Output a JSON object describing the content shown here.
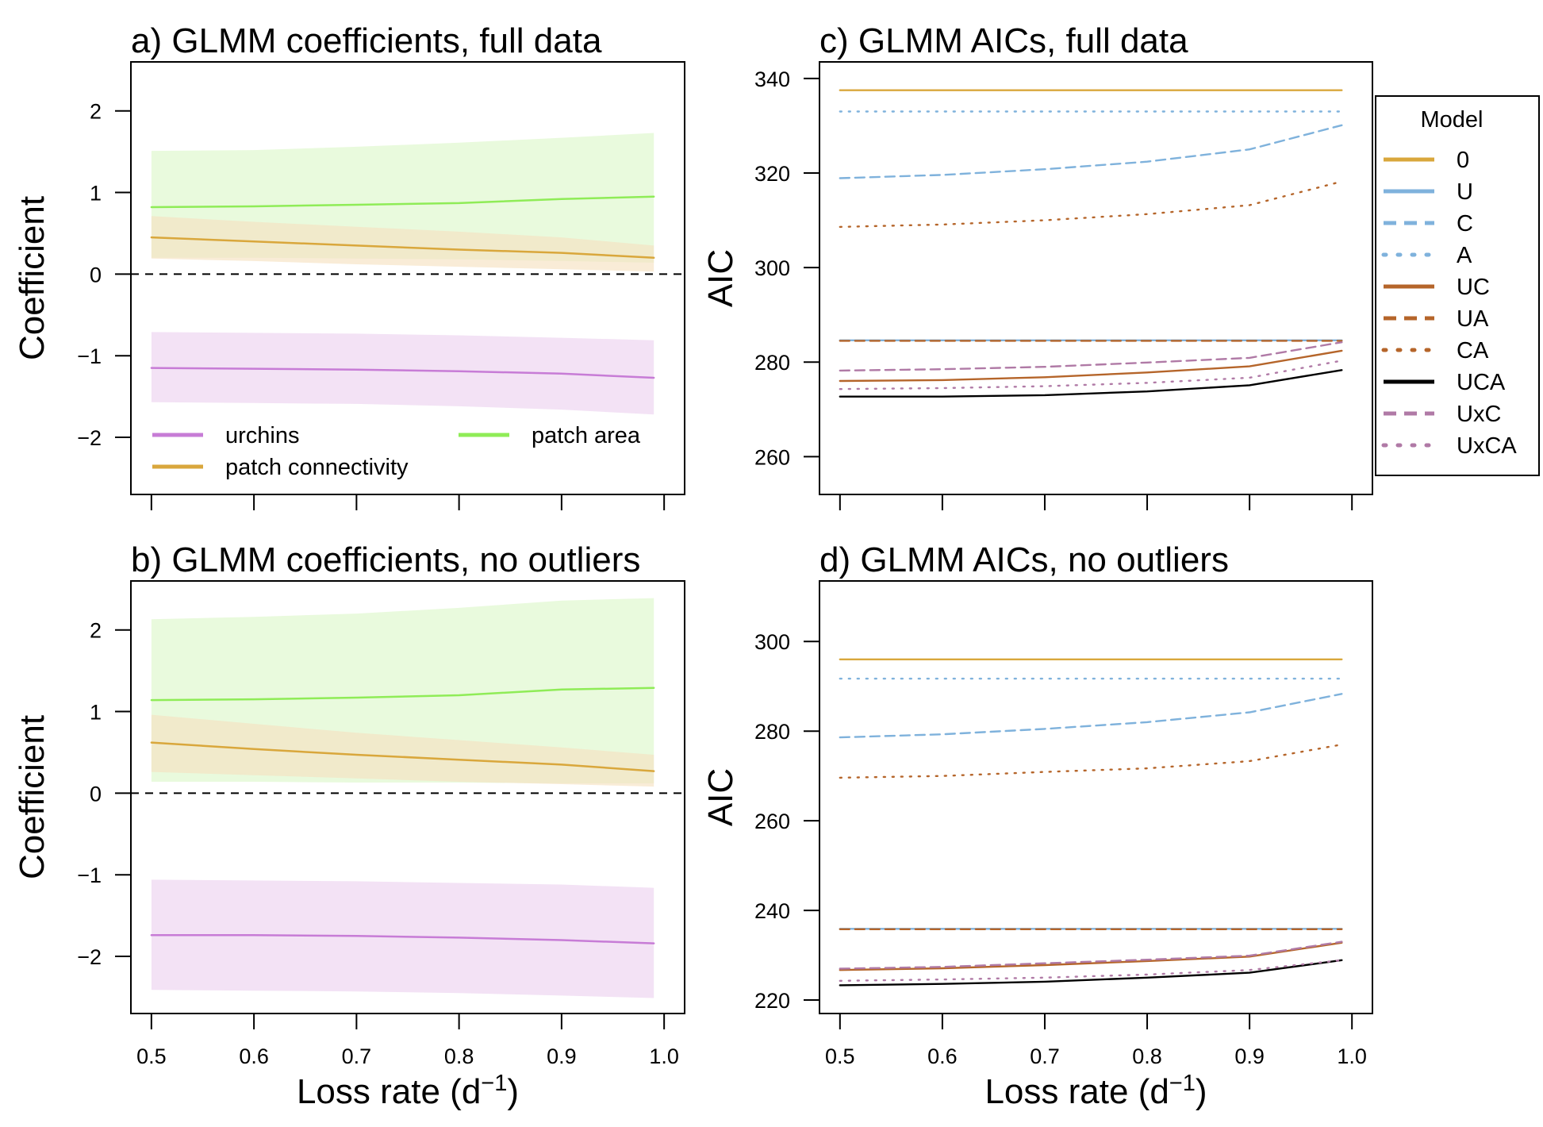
{
  "figure": {
    "panels": [
      {
        "id": "a",
        "title": "a) GLMM coefficients, full data",
        "ylabel": "Coefficient",
        "xlabel_base": "Loss rate (d",
        "xlabel_sup": "−1",
        "xlabel_close": ")",
        "show_xlabel": false,
        "show_x_tick_labels": false,
        "x_ticks": [
          "0.5",
          "0.6",
          "0.7",
          "0.8",
          "0.9",
          "1.0"
        ],
        "y_ticks": [
          "−2",
          "−1",
          "0",
          "1",
          "2"
        ],
        "legend": [
          {
            "label": "urchins",
            "color": "#c77cd6"
          },
          {
            "label": "patch connectivity",
            "color": "#d9a73c"
          },
          {
            "label": "patch area",
            "color": "#8fec57"
          }
        ]
      },
      {
        "id": "b",
        "title": "b) GLMM coefficients, no outliers",
        "ylabel": "Coefficient",
        "xlabel_base": "Loss rate (d",
        "xlabel_sup": "−1",
        "xlabel_close": ")",
        "show_xlabel": true,
        "show_x_tick_labels": true,
        "x_ticks": [
          "0.5",
          "0.6",
          "0.7",
          "0.8",
          "0.9",
          "1.0"
        ],
        "y_ticks": [
          "−2",
          "−1",
          "0",
          "1",
          "2"
        ]
      },
      {
        "id": "c",
        "title": "c) GLMM AICs, full data",
        "ylabel": "AIC",
        "xlabel_base": "Loss rate (d",
        "xlabel_sup": "−1",
        "xlabel_close": ")",
        "show_xlabel": false,
        "show_x_tick_labels": false,
        "x_ticks": [
          "0.5",
          "0.6",
          "0.7",
          "0.8",
          "0.9",
          "1.0"
        ],
        "y_ticks": [
          "260",
          "280",
          "300",
          "320",
          "340"
        ]
      },
      {
        "id": "d",
        "title": "d) GLMM AICs, no outliers",
        "ylabel": "AIC",
        "xlabel_base": "Loss rate (d",
        "xlabel_sup": "−1",
        "xlabel_close": ")",
        "show_xlabel": true,
        "show_x_tick_labels": true,
        "x_ticks": [
          "0.5",
          "0.6",
          "0.7",
          "0.8",
          "0.9",
          "1.0"
        ],
        "y_ticks": [
          "220",
          "240",
          "260",
          "280",
          "300"
        ]
      }
    ],
    "model_legend": {
      "title": "Model",
      "items": [
        {
          "label": "0",
          "color": "#d9a73c",
          "dash": "solid"
        },
        {
          "label": "U",
          "color": "#7fb2dc",
          "dash": "solid"
        },
        {
          "label": "C",
          "color": "#7fb2dc",
          "dash": "dashed"
        },
        {
          "label": "A",
          "color": "#7fb2dc",
          "dash": "dotted"
        },
        {
          "label": "UC",
          "color": "#b5652a",
          "dash": "solid"
        },
        {
          "label": "UA",
          "color": "#b5652a",
          "dash": "dashed"
        },
        {
          "label": "CA",
          "color": "#b5652a",
          "dash": "dotted"
        },
        {
          "label": "UCA",
          "color": "#000000",
          "dash": "solid"
        },
        {
          "label": "UxC",
          "color": "#b07aa6",
          "dash": "dashed"
        },
        {
          "label": "UxCA",
          "color": "#b07aa6",
          "dash": "dotted"
        }
      ]
    }
  },
  "chart_data": [
    {
      "id": "a",
      "type": "line",
      "title": "a) GLMM coefficients, full data",
      "xlabel": "Loss rate (d−1)",
      "ylabel": "Coefficient",
      "xlim": [
        0.48,
        1.02
      ],
      "ylim": [
        -2.7,
        2.6
      ],
      "reference_line": 0,
      "legend_position": "bottom",
      "x": [
        0.5,
        0.6,
        0.7,
        0.8,
        0.9,
        0.99
      ],
      "series": [
        {
          "name": "urchins",
          "color": "#c77cd6",
          "band_color": "#ecd3f0",
          "values": [
            -1.15,
            -1.16,
            -1.17,
            -1.19,
            -1.22,
            -1.27
          ],
          "lower": [
            -1.57,
            -1.58,
            -1.59,
            -1.62,
            -1.66,
            -1.72
          ],
          "upper": [
            -0.71,
            -0.72,
            -0.73,
            -0.75,
            -0.78,
            -0.81
          ]
        },
        {
          "name": "patch area",
          "color": "#8fec57",
          "band_color": "#ddf7cb",
          "values": [
            0.82,
            0.83,
            0.85,
            0.87,
            0.92,
            0.95
          ],
          "lower": [
            0.2,
            0.2,
            0.19,
            0.18,
            0.16,
            0.14
          ],
          "upper": [
            1.51,
            1.52,
            1.56,
            1.61,
            1.67,
            1.73
          ]
        },
        {
          "name": "patch connectivity",
          "color": "#d9a73c",
          "band_color": "#f6e2c2",
          "values": [
            0.45,
            0.4,
            0.35,
            0.3,
            0.26,
            0.2
          ],
          "lower": [
            0.19,
            0.16,
            0.12,
            0.09,
            0.06,
            0.03
          ],
          "upper": [
            0.71,
            0.64,
            0.58,
            0.52,
            0.45,
            0.35
          ]
        }
      ]
    },
    {
      "id": "b",
      "type": "line",
      "title": "b) GLMM coefficients, no outliers",
      "xlabel": "Loss rate (d−1)",
      "ylabel": "Coefficient",
      "xlim": [
        0.48,
        1.02
      ],
      "ylim": [
        -2.7,
        2.6
      ],
      "reference_line": 0,
      "x": [
        0.5,
        0.6,
        0.7,
        0.8,
        0.9,
        0.99
      ],
      "series": [
        {
          "name": "urchins",
          "color": "#c77cd6",
          "band_color": "#ecd3f0",
          "values": [
            -1.74,
            -1.74,
            -1.75,
            -1.77,
            -1.8,
            -1.84
          ],
          "lower": [
            -2.41,
            -2.42,
            -2.43,
            -2.45,
            -2.48,
            -2.51
          ],
          "upper": [
            -1.06,
            -1.07,
            -1.08,
            -1.1,
            -1.12,
            -1.16
          ]
        },
        {
          "name": "patch area",
          "color": "#8fec57",
          "band_color": "#ddf7cb",
          "values": [
            1.14,
            1.15,
            1.17,
            1.2,
            1.27,
            1.29
          ],
          "lower": [
            0.14,
            0.14,
            0.13,
            0.13,
            0.12,
            0.12
          ],
          "upper": [
            2.13,
            2.16,
            2.2,
            2.27,
            2.36,
            2.39
          ]
        },
        {
          "name": "patch connectivity",
          "color": "#d9a73c",
          "band_color": "#f6e2c2",
          "values": [
            0.62,
            0.54,
            0.47,
            0.41,
            0.35,
            0.27
          ],
          "lower": [
            0.26,
            0.22,
            0.18,
            0.14,
            0.11,
            0.08
          ],
          "upper": [
            0.96,
            0.85,
            0.74,
            0.65,
            0.56,
            0.47
          ]
        }
      ]
    },
    {
      "id": "c",
      "type": "line",
      "title": "c) GLMM AICs, full data",
      "xlabel": "Loss rate (d−1)",
      "ylabel": "AIC",
      "xlim": [
        0.48,
        1.02
      ],
      "ylim": [
        252,
        343.5
      ],
      "legend_position": "right",
      "x": [
        0.5,
        0.6,
        0.7,
        0.8,
        0.9,
        0.99
      ],
      "series": [
        {
          "name": "0",
          "color": "#d9a73c",
          "dash": "solid",
          "values": [
            337.5,
            337.5,
            337.5,
            337.5,
            337.5,
            337.5
          ]
        },
        {
          "name": "U",
          "color": "#7fb2dc",
          "dash": "solid",
          "values": [
            284.6,
            284.6,
            284.6,
            284.6,
            284.6,
            284.6
          ]
        },
        {
          "name": "C",
          "color": "#7fb2dc",
          "dash": "dashed",
          "values": [
            318.9,
            319.6,
            320.8,
            322.4,
            325.0,
            330.1
          ]
        },
        {
          "name": "A",
          "color": "#7fb2dc",
          "dash": "dotted",
          "values": [
            333.0,
            333.0,
            333.0,
            333.0,
            333.0,
            333.0
          ]
        },
        {
          "name": "UC",
          "color": "#b5652a",
          "dash": "solid",
          "values": [
            276.0,
            276.2,
            276.8,
            277.8,
            279.1,
            282.4
          ]
        },
        {
          "name": "UA",
          "color": "#b5652a",
          "dash": "dashed",
          "values": [
            284.5,
            284.5,
            284.5,
            284.5,
            284.5,
            284.5
          ]
        },
        {
          "name": "CA",
          "color": "#b5652a",
          "dash": "dotted",
          "values": [
            308.6,
            309.1,
            310.0,
            311.3,
            313.2,
            318.2
          ]
        },
        {
          "name": "UCA",
          "color": "#000000",
          "dash": "solid",
          "values": [
            272.7,
            272.7,
            273.0,
            273.8,
            275.1,
            278.3
          ]
        },
        {
          "name": "UxC",
          "color": "#b07aa6",
          "dash": "dashed",
          "values": [
            278.2,
            278.5,
            279.0,
            279.9,
            280.9,
            284.2
          ]
        },
        {
          "name": "UxCA",
          "color": "#b07aa6",
          "dash": "dotted",
          "values": [
            274.3,
            274.5,
            274.9,
            275.6,
            276.7,
            280.3
          ]
        }
      ]
    },
    {
      "id": "d",
      "type": "line",
      "title": "d) GLMM AICs, no outliers",
      "xlabel": "Loss rate (d−1)",
      "ylabel": "AIC",
      "xlim": [
        0.48,
        1.02
      ],
      "ylim": [
        217,
        313.5
      ],
      "x": [
        0.5,
        0.6,
        0.7,
        0.8,
        0.9,
        0.99
      ],
      "series": [
        {
          "name": "0",
          "color": "#d9a73c",
          "dash": "solid",
          "values": [
            296.0,
            296.0,
            296.0,
            296.0,
            296.0,
            296.0
          ]
        },
        {
          "name": "U",
          "color": "#7fb2dc",
          "dash": "solid",
          "values": [
            235.9,
            235.9,
            235.9,
            235.9,
            235.9,
            235.9
          ]
        },
        {
          "name": "C",
          "color": "#7fb2dc",
          "dash": "dashed",
          "values": [
            278.6,
            279.3,
            280.5,
            282.0,
            284.2,
            288.3
          ]
        },
        {
          "name": "A",
          "color": "#7fb2dc",
          "dash": "dotted",
          "values": [
            291.7,
            291.7,
            291.7,
            291.7,
            291.7,
            291.7
          ]
        },
        {
          "name": "UC",
          "color": "#b5652a",
          "dash": "solid",
          "values": [
            226.7,
            227.1,
            227.8,
            228.7,
            229.7,
            232.8
          ]
        },
        {
          "name": "UA",
          "color": "#b5652a",
          "dash": "dashed",
          "values": [
            235.8,
            235.8,
            235.8,
            235.8,
            235.8,
            235.8
          ]
        },
        {
          "name": "CA",
          "color": "#b5652a",
          "dash": "dotted",
          "values": [
            269.6,
            270.0,
            270.9,
            271.7,
            273.3,
            277.0
          ]
        },
        {
          "name": "UCA",
          "color": "#000000",
          "dash": "solid",
          "values": [
            223.3,
            223.6,
            224.1,
            225.0,
            226.1,
            228.9
          ]
        },
        {
          "name": "UxC",
          "color": "#b07aa6",
          "dash": "dashed",
          "values": [
            227.0,
            227.4,
            228.2,
            229.0,
            229.9,
            233.0
          ]
        },
        {
          "name": "UxCA",
          "color": "#b07aa6",
          "dash": "dotted",
          "values": [
            224.3,
            224.6,
            225.0,
            225.7,
            226.7,
            228.9
          ]
        }
      ]
    }
  ]
}
